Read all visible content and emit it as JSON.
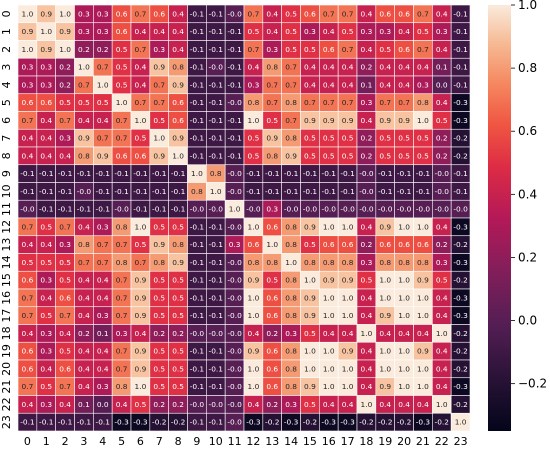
{
  "chart_data": {
    "type": "heatmap",
    "title": "",
    "xlabel": "",
    "ylabel": "",
    "row_labels": [
      "0",
      "1",
      "2",
      "3",
      "4",
      "5",
      "6",
      "7",
      "8",
      "9",
      "10",
      "11",
      "12",
      "13",
      "14",
      "15",
      "16",
      "17",
      "18",
      "19",
      "20",
      "21",
      "22",
      "23"
    ],
    "col_labels": [
      "0",
      "1",
      "2",
      "3",
      "4",
      "5",
      "6",
      "7",
      "8",
      "9",
      "10",
      "11",
      "12",
      "13",
      "14",
      "15",
      "16",
      "17",
      "18",
      "19",
      "20",
      "21",
      "22",
      "23"
    ],
    "values": [
      [
        1.0,
        0.9,
        1.0,
        0.3,
        0.3,
        0.6,
        0.7,
        0.6,
        0.4,
        -0.1,
        -0.1,
        -0.0,
        0.7,
        0.4,
        0.5,
        0.6,
        0.7,
        0.7,
        0.4,
        0.6,
        0.6,
        0.7,
        0.4,
        -0.1
      ],
      [
        0.9,
        1.0,
        0.9,
        0.3,
        0.3,
        0.6,
        0.4,
        0.4,
        0.4,
        -0.1,
        -0.1,
        -0.1,
        0.5,
        0.4,
        0.5,
        0.3,
        0.4,
        0.5,
        0.3,
        0.3,
        0.4,
        0.5,
        0.3,
        -0.1
      ],
      [
        1.0,
        0.9,
        1.0,
        0.2,
        0.2,
        0.5,
        0.7,
        0.3,
        0.4,
        -0.1,
        -0.1,
        -0.1,
        0.7,
        0.3,
        0.5,
        0.5,
        0.6,
        0.7,
        0.4,
        0.5,
        0.6,
        0.7,
        0.4,
        -0.1
      ],
      [
        0.3,
        0.3,
        0.2,
        1.0,
        0.7,
        0.5,
        0.4,
        0.9,
        0.8,
        -0.1,
        -0.0,
        -0.1,
        0.4,
        0.8,
        0.7,
        0.4,
        0.4,
        0.4,
        0.2,
        0.4,
        0.4,
        0.4,
        0.1,
        -0.1
      ],
      [
        0.3,
        0.3,
        0.2,
        0.7,
        1.0,
        0.5,
        0.4,
        0.7,
        0.9,
        -0.1,
        -0.1,
        -0.1,
        0.3,
        0.7,
        0.7,
        0.4,
        0.4,
        0.4,
        0.1,
        0.4,
        0.4,
        0.3,
        0.0,
        -0.1
      ],
      [
        0.6,
        0.6,
        0.5,
        0.5,
        0.5,
        1.0,
        0.7,
        0.7,
        0.6,
        -0.1,
        -0.1,
        -0.0,
        0.8,
        0.7,
        0.8,
        0.7,
        0.7,
        0.7,
        0.3,
        0.7,
        0.7,
        0.8,
        0.4,
        -0.3
      ],
      [
        0.7,
        0.4,
        0.7,
        0.4,
        0.4,
        0.7,
        1.0,
        0.5,
        0.6,
        -0.1,
        -0.1,
        -0.1,
        1.0,
        0.5,
        0.7,
        0.9,
        0.9,
        0.9,
        0.4,
        0.9,
        0.9,
        1.0,
        0.5,
        -0.3
      ],
      [
        0.4,
        0.4,
        0.3,
        0.9,
        0.7,
        0.7,
        0.5,
        1.0,
        0.9,
        -0.1,
        -0.1,
        -0.1,
        0.5,
        0.9,
        0.8,
        0.5,
        0.5,
        0.5,
        0.2,
        0.5,
        0.5,
        0.5,
        0.2,
        -0.2
      ],
      [
        0.4,
        0.4,
        0.4,
        0.8,
        0.9,
        0.6,
        0.6,
        0.9,
        1.0,
        -0.1,
        -0.1,
        -0.1,
        0.5,
        0.8,
        0.9,
        0.5,
        0.5,
        0.5,
        0.2,
        0.5,
        0.5,
        0.5,
        0.2,
        -0.2
      ],
      [
        -0.1,
        -0.1,
        -0.1,
        -0.1,
        -0.1,
        -0.1,
        -0.1,
        -0.1,
        -0.1,
        1.0,
        0.8,
        -0.0,
        -0.1,
        -0.1,
        -0.1,
        -0.1,
        -0.1,
        -0.1,
        -0.0,
        -0.1,
        -0.1,
        -0.1,
        -0.0,
        -0.1
      ],
      [
        -0.1,
        -0.1,
        -0.1,
        -0.0,
        -0.1,
        -0.1,
        -0.1,
        -0.1,
        -0.1,
        0.8,
        1.0,
        -0.0,
        -0.1,
        -0.1,
        -0.1,
        -0.1,
        -0.1,
        -0.1,
        -0.0,
        -0.1,
        -0.1,
        -0.1,
        -0.0,
        -0.1
      ],
      [
        -0.0,
        -0.1,
        -0.1,
        -0.1,
        -0.1,
        -0.0,
        -0.1,
        -0.1,
        -0.1,
        -0.0,
        -0.0,
        1.0,
        -0.0,
        0.3,
        -0.0,
        -0.0,
        -0.0,
        -0.0,
        -0.0,
        -0.0,
        -0.0,
        -0.0,
        -0.0,
        -0.0
      ],
      [
        0.7,
        0.5,
        0.7,
        0.4,
        0.3,
        0.8,
        1.0,
        0.5,
        0.5,
        -0.1,
        -0.1,
        -0.0,
        1.0,
        0.6,
        0.8,
        0.9,
        1.0,
        1.0,
        0.4,
        0.9,
        1.0,
        1.0,
        0.4,
        -0.3
      ],
      [
        0.4,
        0.4,
        0.3,
        0.8,
        0.7,
        0.7,
        0.5,
        0.9,
        0.8,
        -0.1,
        -0.1,
        0.3,
        0.6,
        1.0,
        0.8,
        0.5,
        0.6,
        0.6,
        0.2,
        0.6,
        0.6,
        0.6,
        0.2,
        -0.2
      ],
      [
        0.5,
        0.5,
        0.5,
        0.7,
        0.7,
        0.8,
        0.7,
        0.8,
        0.9,
        -0.1,
        -0.1,
        -0.0,
        0.8,
        0.8,
        1.0,
        0.8,
        0.8,
        0.8,
        0.3,
        0.8,
        0.8,
        0.8,
        0.3,
        -0.3
      ],
      [
        0.6,
        0.3,
        0.5,
        0.4,
        0.4,
        0.7,
        0.9,
        0.5,
        0.5,
        -0.1,
        -0.1,
        -0.0,
        0.9,
        0.5,
        0.8,
        1.0,
        0.9,
        0.9,
        0.5,
        1.0,
        1.0,
        0.9,
        0.5,
        -0.2
      ],
      [
        0.7,
        0.4,
        0.6,
        0.4,
        0.4,
        0.7,
        0.9,
        0.5,
        0.5,
        -0.1,
        -0.1,
        -0.0,
        1.0,
        0.6,
        0.8,
        0.9,
        1.0,
        1.0,
        0.4,
        1.0,
        1.0,
        1.0,
        0.4,
        -0.3
      ],
      [
        0.7,
        0.5,
        0.7,
        0.4,
        0.3,
        0.7,
        0.9,
        0.5,
        0.5,
        -0.1,
        -0.1,
        -0.0,
        1.0,
        0.6,
        0.8,
        0.9,
        1.0,
        1.0,
        0.4,
        0.9,
        1.0,
        1.0,
        0.4,
        -0.3
      ],
      [
        0.4,
        0.3,
        0.4,
        0.2,
        0.1,
        0.3,
        0.4,
        0.2,
        0.2,
        -0.0,
        -0.0,
        -0.0,
        0.4,
        0.2,
        0.3,
        0.5,
        0.4,
        0.4,
        1.0,
        0.4,
        0.4,
        0.4,
        1.0,
        -0.2
      ],
      [
        0.6,
        0.3,
        0.5,
        0.4,
        0.4,
        0.7,
        0.9,
        0.5,
        0.5,
        -0.1,
        -0.1,
        -0.0,
        0.9,
        0.6,
        0.8,
        1.0,
        1.0,
        0.9,
        0.4,
        1.0,
        1.0,
        0.9,
        0.4,
        -0.2
      ],
      [
        0.6,
        0.4,
        0.6,
        0.4,
        0.4,
        0.7,
        0.9,
        0.5,
        0.5,
        -0.1,
        -0.1,
        -0.0,
        1.0,
        0.6,
        0.8,
        1.0,
        1.0,
        1.0,
        0.4,
        1.0,
        1.0,
        1.0,
        0.4,
        -0.2
      ],
      [
        0.7,
        0.5,
        0.7,
        0.4,
        0.3,
        0.8,
        1.0,
        0.5,
        0.5,
        -0.1,
        -0.1,
        -0.0,
        1.0,
        0.6,
        0.8,
        0.9,
        1.0,
        1.0,
        0.4,
        0.9,
        1.0,
        1.0,
        0.4,
        -0.3
      ],
      [
        0.4,
        0.3,
        0.4,
        0.1,
        0.0,
        0.4,
        0.5,
        0.2,
        0.2,
        -0.0,
        -0.0,
        -0.0,
        0.4,
        0.2,
        0.3,
        0.5,
        0.4,
        0.4,
        1.0,
        0.4,
        0.4,
        0.4,
        1.0,
        -0.2
      ],
      [
        -0.1,
        -0.1,
        -0.1,
        -0.1,
        -0.1,
        -0.3,
        -0.3,
        -0.2,
        -0.2,
        -0.1,
        -0.1,
        -0.0,
        -0.3,
        -0.2,
        -0.3,
        -0.2,
        -0.3,
        -0.3,
        -0.2,
        -0.2,
        -0.2,
        -0.3,
        -0.2,
        1.0
      ]
    ],
    "value_range": [
      -0.35,
      1.0
    ],
    "colormap": "rocket",
    "colorbar_ticks": [
      -0.2,
      0.0,
      0.2,
      0.4,
      0.6,
      0.8,
      1.0
    ],
    "colorbar_tick_labels": [
      "−0.2",
      "0.0",
      "0.2",
      "0.4",
      "0.6",
      "0.8",
      "1.0"
    ],
    "annotate_cells": true,
    "grid_line_color": "#ffffff"
  }
}
